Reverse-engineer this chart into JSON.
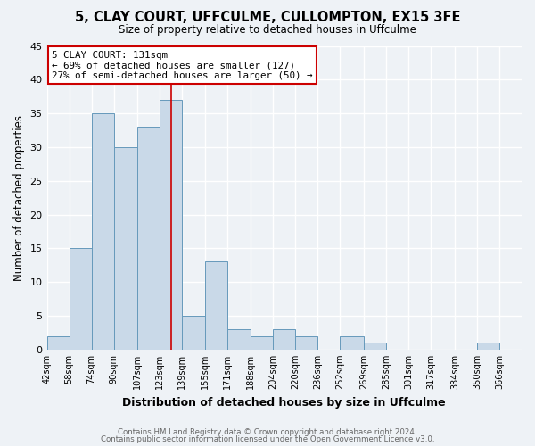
{
  "title": "5, CLAY COURT, UFFCULME, CULLOMPTON, EX15 3FE",
  "subtitle": "Size of property relative to detached houses in Uffculme",
  "xlabel": "Distribution of detached houses by size in Uffculme",
  "ylabel": "Number of detached properties",
  "bar_color": "#c9d9e8",
  "bar_edge_color": "#6699bb",
  "background_color": "#eef2f6",
  "plot_bg_color": "#eef2f6",
  "grid_color": "#ffffff",
  "bin_labels": [
    "42sqm",
    "58sqm",
    "74sqm",
    "90sqm",
    "107sqm",
    "123sqm",
    "139sqm",
    "155sqm",
    "171sqm",
    "188sqm",
    "204sqm",
    "220sqm",
    "236sqm",
    "252sqm",
    "269sqm",
    "285sqm",
    "301sqm",
    "317sqm",
    "334sqm",
    "350sqm",
    "366sqm"
  ],
  "bin_edges": [
    42,
    58,
    74,
    90,
    107,
    123,
    139,
    155,
    171,
    188,
    204,
    220,
    236,
    252,
    269,
    285,
    301,
    317,
    334,
    350,
    366,
    382
  ],
  "values": [
    2,
    15,
    35,
    30,
    33,
    37,
    5,
    13,
    3,
    2,
    3,
    2,
    0,
    2,
    1,
    0,
    0,
    0,
    0,
    1,
    0
  ],
  "ylim": [
    0,
    45
  ],
  "yticks": [
    0,
    5,
    10,
    15,
    20,
    25,
    30,
    35,
    40,
    45
  ],
  "vline_x": 131,
  "vline_color": "#cc0000",
  "annotation_title": "5 CLAY COURT: 131sqm",
  "annotation_line1": "← 69% of detached houses are smaller (127)",
  "annotation_line2": "27% of semi-detached houses are larger (50) →",
  "annotation_box_color": "#ffffff",
  "annotation_box_edge": "#cc0000",
  "footer1": "Contains HM Land Registry data © Crown copyright and database right 2024.",
  "footer2": "Contains public sector information licensed under the Open Government Licence v3.0."
}
